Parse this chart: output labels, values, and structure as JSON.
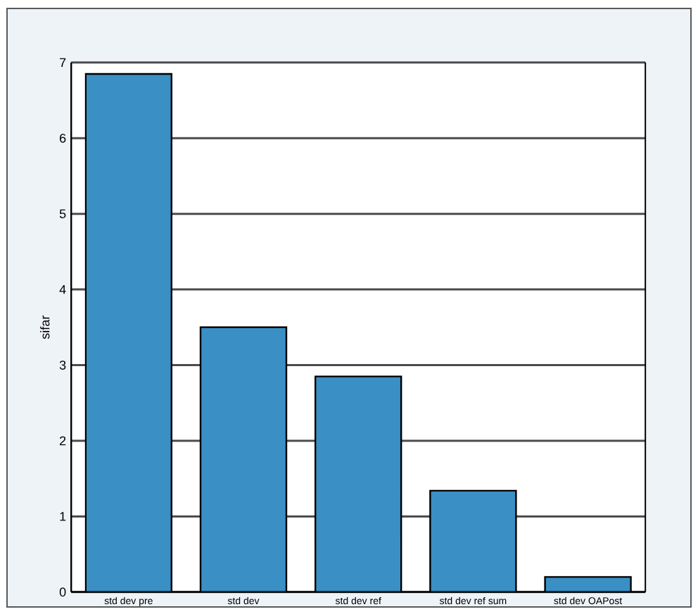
{
  "chart_data": {
    "type": "bar",
    "ylabel": "sifar",
    "categories": [
      "std dev pre",
      "std dev",
      "std dev ref",
      "std dev ref sum",
      "std dev OAPost"
    ],
    "values": [
      6.85,
      3.5,
      2.85,
      1.34,
      0.2
    ],
    "color": "#3a8fc4",
    "ylim": [
      0,
      7
    ],
    "yticks": [
      0,
      1,
      2,
      3,
      4,
      5,
      6,
      7
    ],
    "grid": "y"
  }
}
